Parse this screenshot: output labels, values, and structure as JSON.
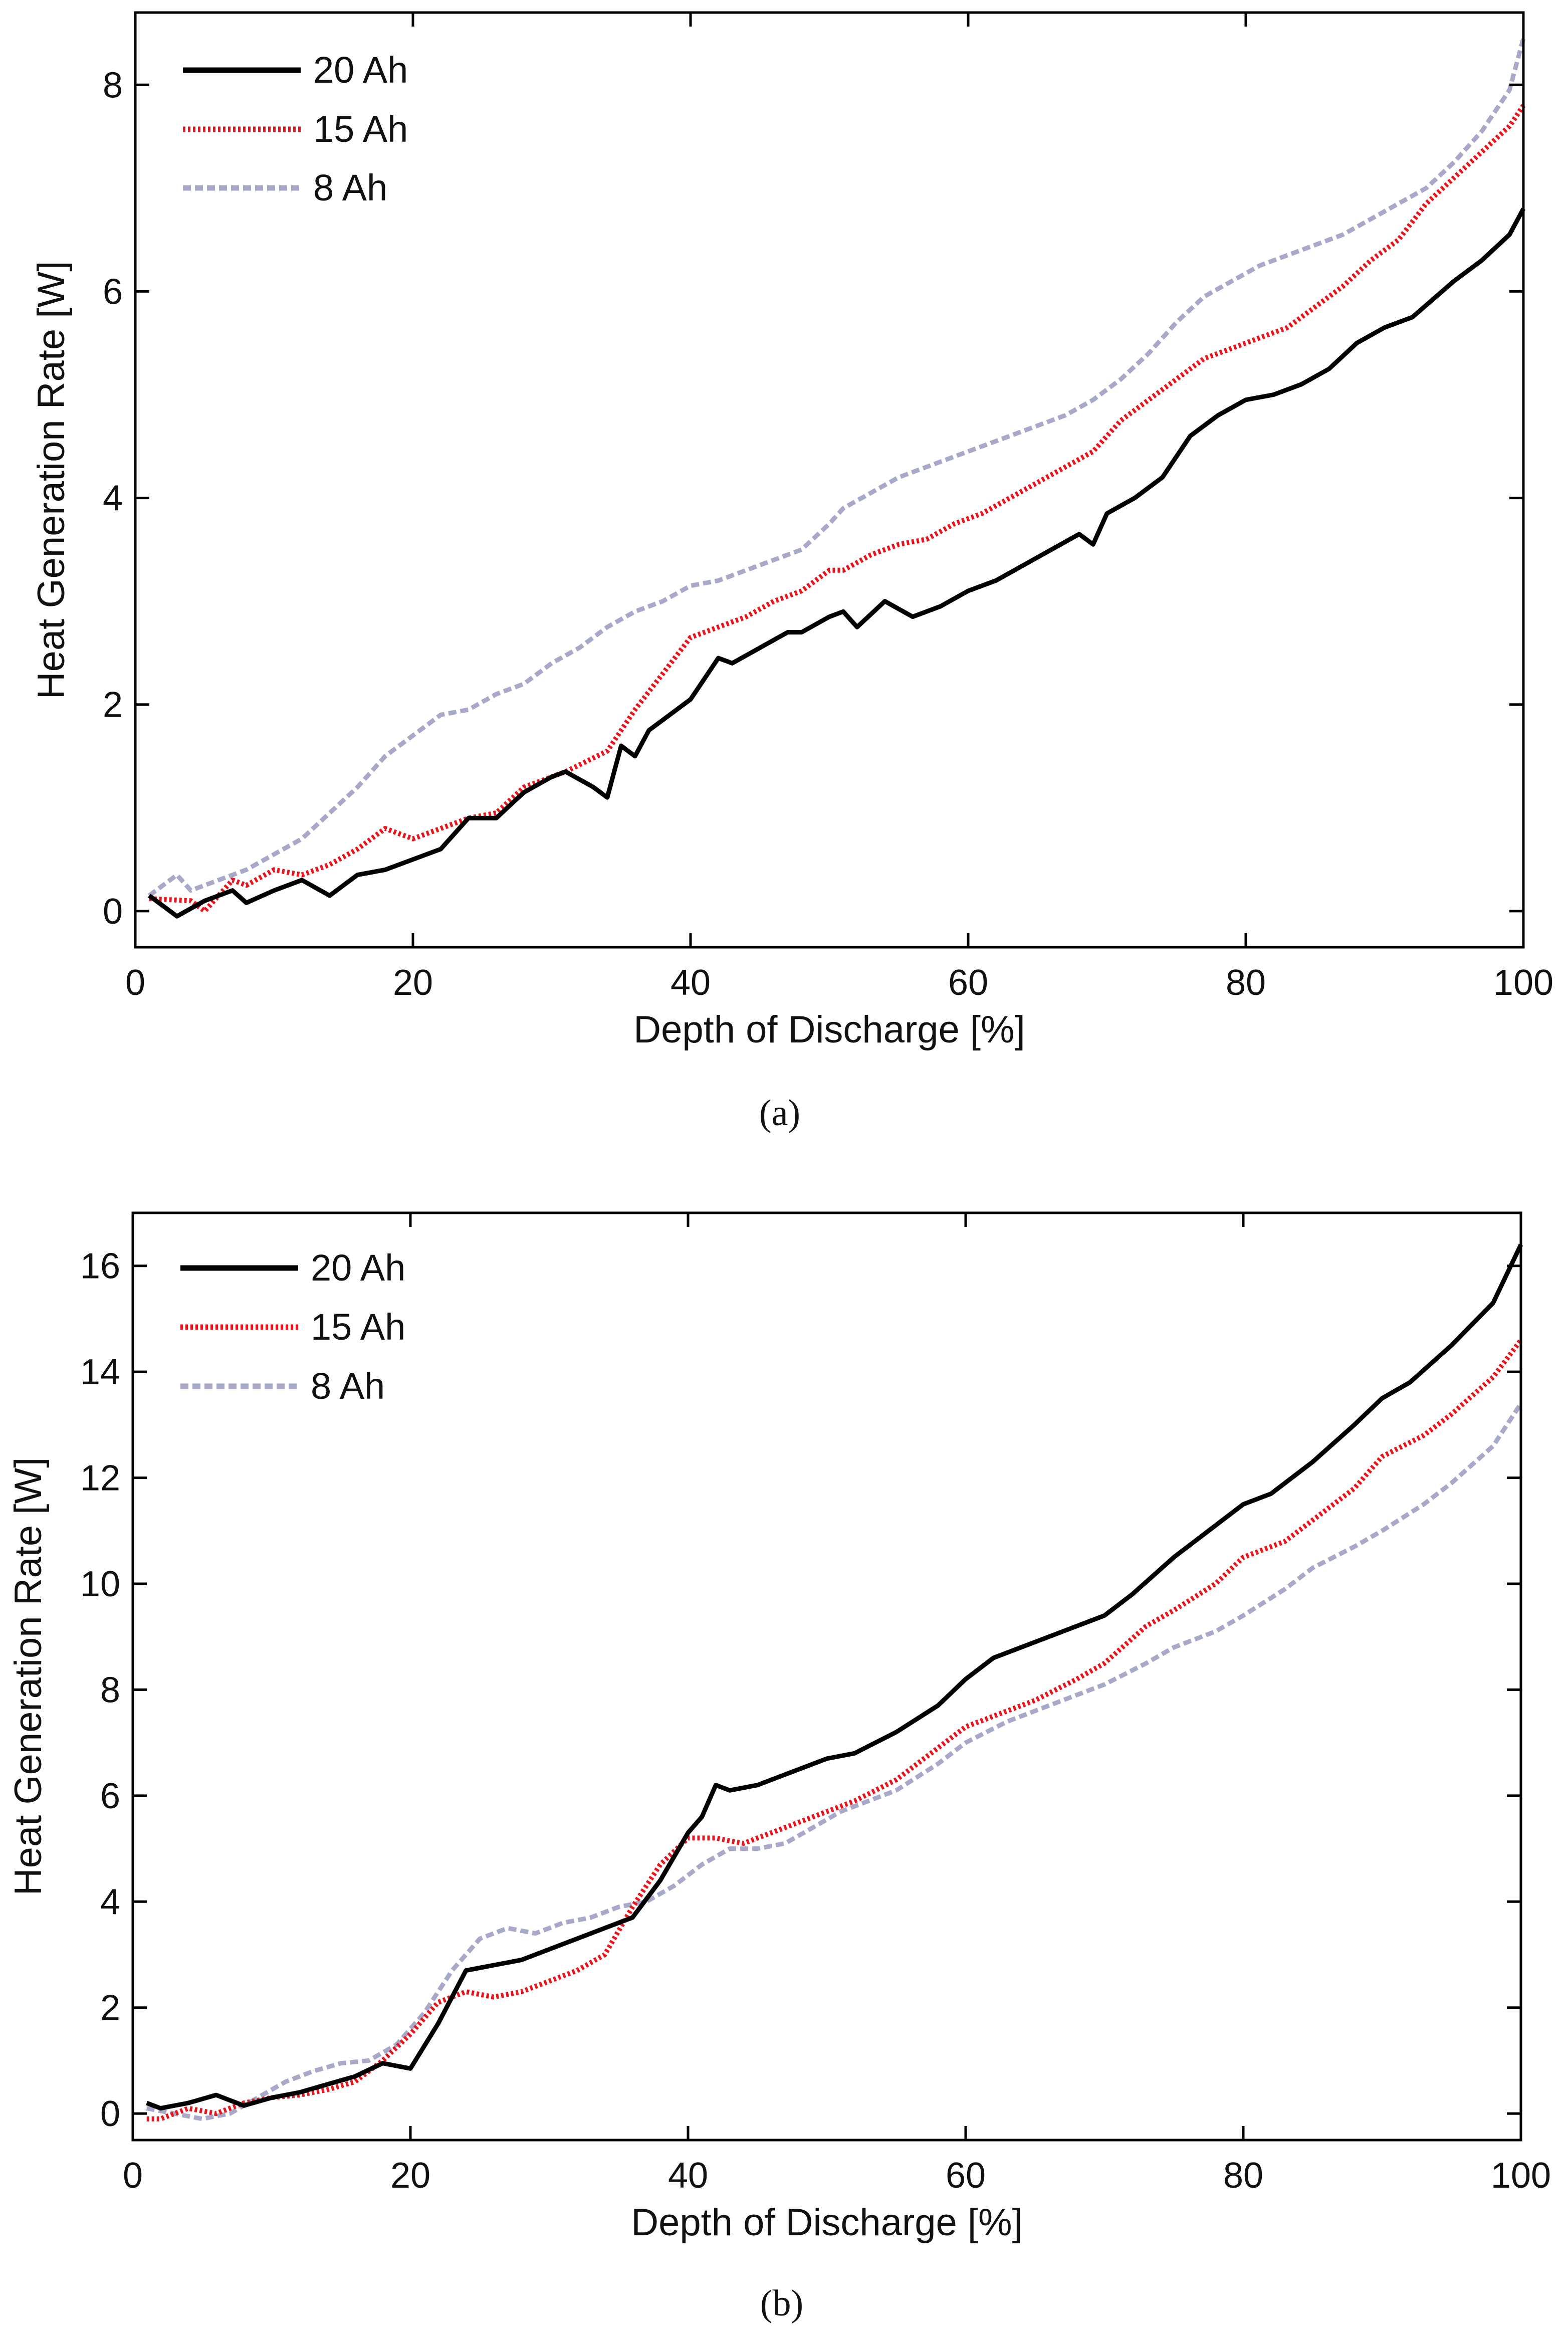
{
  "figure_captions": [
    "(a)",
    "(b)"
  ],
  "colors": {
    "series_20ah": "#000000",
    "series_15ah": "#e8141c",
    "series_8ah": "#a8a8c8",
    "axes": "#000000",
    "background": "#ffffff"
  },
  "chart_data": [
    {
      "type": "line",
      "panel": "a",
      "caption": "(a)",
      "title": "",
      "xlabel": "Depth of Discharge [%]",
      "ylabel": "Heat Generation Rate [W]",
      "xlim": [
        0,
        100
      ],
      "ylim": [
        -0.35,
        8.7
      ],
      "xticks": [
        0,
        20,
        40,
        60,
        80,
        100
      ],
      "yticks": [
        0,
        2,
        4,
        6,
        8
      ],
      "grid": false,
      "legend_position": "top-left",
      "series": [
        {
          "name": "20 Ah",
          "style": "solid",
          "x": [
            1,
            3,
            5,
            7,
            8,
            10,
            12,
            14,
            16,
            18,
            20,
            22,
            24,
            26,
            28,
            30,
            31,
            33,
            34,
            35,
            36,
            37,
            40,
            42,
            43,
            45,
            47,
            48,
            50,
            51,
            52,
            54,
            56,
            58,
            60,
            62,
            64,
            66,
            68,
            69,
            70,
            72,
            74,
            76,
            78,
            80,
            82,
            84,
            86,
            88,
            90,
            92,
            95,
            97,
            99,
            100
          ],
          "values": [
            0.15,
            -0.05,
            0.1,
            0.2,
            0.08,
            0.2,
            0.3,
            0.15,
            0.35,
            0.4,
            0.5,
            0.6,
            0.9,
            0.9,
            1.15,
            1.3,
            1.35,
            1.2,
            1.1,
            1.6,
            1.5,
            1.75,
            2.05,
            2.45,
            2.4,
            2.55,
            2.7,
            2.7,
            2.85,
            2.9,
            2.75,
            3.0,
            2.85,
            2.95,
            3.1,
            3.2,
            3.35,
            3.5,
            3.65,
            3.55,
            3.85,
            4.0,
            4.2,
            4.6,
            4.8,
            4.95,
            5.0,
            5.1,
            5.25,
            5.5,
            5.65,
            5.75,
            6.1,
            6.3,
            6.55,
            6.8
          ]
        },
        {
          "name": "15 Ah",
          "style": "dotted",
          "x": [
            1,
            4,
            5,
            7,
            8,
            10,
            12,
            14,
            16,
            18,
            20,
            22,
            24,
            26,
            28,
            30,
            31,
            34,
            36,
            38,
            40,
            42,
            44,
            46,
            48,
            50,
            51,
            53,
            55,
            57,
            59,
            61,
            63,
            65,
            67,
            69,
            71,
            73,
            75,
            77,
            79,
            81,
            83,
            85,
            87,
            89,
            91,
            93,
            95,
            97,
            99,
            100
          ],
          "values": [
            0.12,
            0.1,
            0.0,
            0.3,
            0.25,
            0.4,
            0.35,
            0.45,
            0.6,
            0.8,
            0.7,
            0.8,
            0.9,
            0.95,
            1.2,
            1.3,
            1.35,
            1.55,
            1.95,
            2.3,
            2.65,
            2.75,
            2.85,
            3.0,
            3.1,
            3.3,
            3.3,
            3.45,
            3.55,
            3.6,
            3.75,
            3.85,
            4.0,
            4.15,
            4.3,
            4.45,
            4.75,
            4.95,
            5.15,
            5.35,
            5.45,
            5.55,
            5.65,
            5.85,
            6.05,
            6.3,
            6.5,
            6.85,
            7.1,
            7.35,
            7.6,
            7.8
          ]
        },
        {
          "name": "8 Ah",
          "style": "dashed",
          "x": [
            1,
            3,
            4,
            6,
            8,
            10,
            12,
            14,
            16,
            18,
            20,
            22,
            24,
            26,
            28,
            30,
            32,
            34,
            36,
            38,
            40,
            42,
            44,
            46,
            48,
            50,
            51,
            53,
            55,
            57,
            59,
            61,
            63,
            65,
            67,
            69,
            71,
            73,
            75,
            77,
            79,
            81,
            83,
            85,
            87,
            89,
            91,
            93,
            95,
            97,
            99,
            100
          ],
          "values": [
            0.15,
            0.35,
            0.2,
            0.3,
            0.4,
            0.55,
            0.7,
            0.95,
            1.2,
            1.5,
            1.7,
            1.9,
            1.95,
            2.1,
            2.2,
            2.4,
            2.55,
            2.75,
            2.9,
            3.0,
            3.15,
            3.2,
            3.3,
            3.4,
            3.5,
            3.75,
            3.9,
            4.05,
            4.2,
            4.3,
            4.4,
            4.5,
            4.6,
            4.7,
            4.8,
            4.95,
            5.15,
            5.4,
            5.7,
            5.95,
            6.1,
            6.25,
            6.35,
            6.45,
            6.55,
            6.7,
            6.85,
            7.0,
            7.25,
            7.55,
            7.95,
            8.45
          ]
        }
      ]
    },
    {
      "type": "line",
      "panel": "b",
      "caption": "(b)",
      "title": "",
      "xlabel": "Depth of Discharge [%]",
      "ylabel": "Heat Generation Rate [W]",
      "xlim": [
        0,
        100
      ],
      "ylim": [
        -0.5,
        17
      ],
      "xticks": [
        0,
        20,
        40,
        60,
        80,
        100
      ],
      "yticks": [
        0,
        2,
        4,
        6,
        8,
        10,
        12,
        14,
        16
      ],
      "grid": false,
      "legend_position": "top-left",
      "series": [
        {
          "name": "20 Ah",
          "style": "solid",
          "x": [
            1,
            2,
            4,
            6,
            8,
            10,
            12,
            14,
            16,
            18,
            20,
            22,
            24,
            26,
            28,
            30,
            32,
            34,
            36,
            38,
            40,
            41,
            42,
            43,
            45,
            47,
            50,
            52,
            55,
            58,
            60,
            62,
            65,
            68,
            70,
            72,
            75,
            78,
            80,
            82,
            85,
            88,
            90,
            92,
            95,
            98,
            100
          ],
          "values": [
            0.2,
            0.1,
            0.2,
            0.35,
            0.15,
            0.3,
            0.4,
            0.55,
            0.7,
            0.95,
            0.85,
            1.7,
            2.7,
            2.8,
            2.9,
            3.1,
            3.3,
            3.5,
            3.7,
            4.4,
            5.3,
            5.6,
            6.2,
            6.1,
            6.2,
            6.4,
            6.7,
            6.8,
            7.2,
            7.7,
            8.2,
            8.6,
            8.9,
            9.2,
            9.4,
            9.8,
            10.5,
            11.1,
            11.5,
            11.7,
            12.3,
            13.0,
            13.5,
            13.8,
            14.5,
            15.3,
            16.4
          ]
        },
        {
          "name": "15 Ah",
          "style": "dotted",
          "x": [
            1,
            2,
            4,
            6,
            8,
            10,
            12,
            14,
            16,
            18,
            20,
            22,
            24,
            26,
            28,
            30,
            32,
            34,
            36,
            38,
            40,
            42,
            44,
            46,
            48,
            50,
            52,
            55,
            58,
            60,
            63,
            65,
            68,
            70,
            73,
            75,
            78,
            80,
            83,
            85,
            88,
            90,
            93,
            95,
            98,
            100
          ],
          "values": [
            -0.1,
            -0.1,
            0.1,
            0.0,
            0.2,
            0.3,
            0.35,
            0.45,
            0.6,
            1.0,
            1.5,
            2.1,
            2.3,
            2.2,
            2.3,
            2.5,
            2.7,
            3.0,
            3.9,
            4.7,
            5.2,
            5.2,
            5.1,
            5.3,
            5.5,
            5.7,
            5.9,
            6.3,
            6.9,
            7.3,
            7.6,
            7.8,
            8.2,
            8.5,
            9.2,
            9.5,
            10.0,
            10.5,
            10.8,
            11.2,
            11.8,
            12.4,
            12.8,
            13.2,
            13.9,
            14.6
          ]
        },
        {
          "name": "8 Ah",
          "style": "dashed",
          "x": [
            1,
            3,
            5,
            7,
            9,
            11,
            13,
            15,
            17,
            19,
            21,
            23,
            25,
            27,
            29,
            31,
            33,
            35,
            37,
            39,
            41,
            43,
            45,
            47,
            49,
            51,
            53,
            55,
            58,
            60,
            63,
            65,
            68,
            70,
            73,
            75,
            78,
            80,
            83,
            85,
            88,
            90,
            93,
            95,
            98,
            100
          ],
          "values": [
            0.1,
            0.0,
            -0.1,
            0.0,
            0.3,
            0.6,
            0.8,
            0.95,
            1.0,
            1.3,
            1.9,
            2.7,
            3.3,
            3.5,
            3.4,
            3.6,
            3.7,
            3.9,
            4.0,
            4.3,
            4.7,
            5.0,
            5.0,
            5.1,
            5.4,
            5.7,
            5.9,
            6.1,
            6.6,
            7.0,
            7.4,
            7.6,
            7.9,
            8.1,
            8.5,
            8.8,
            9.1,
            9.4,
            9.9,
            10.3,
            10.7,
            11.0,
            11.5,
            11.9,
            12.6,
            13.4
          ]
        }
      ]
    }
  ]
}
